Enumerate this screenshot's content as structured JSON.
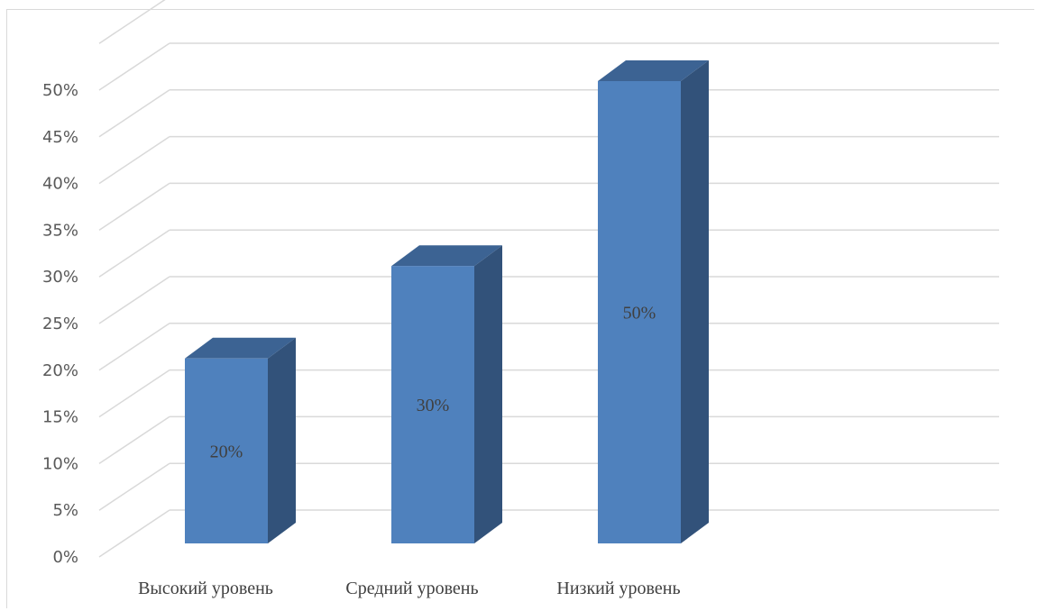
{
  "chart_data": {
    "type": "bar",
    "categories": [
      "Высокий уровень",
      "Средний уровень",
      "Низкий уровень"
    ],
    "values": [
      20,
      30,
      50
    ],
    "data_labels": [
      "20%",
      "30%",
      "50%"
    ],
    "ylim": [
      0,
      50
    ],
    "y_ticks": [
      "0%",
      "5%",
      "10%",
      "15%",
      "20%",
      "25%",
      "30%",
      "35%",
      "40%",
      "45%",
      "50%"
    ],
    "title": "",
    "xlabel": "",
    "ylabel": "",
    "grid": true,
    "style": "3d-column",
    "colors": {
      "bar_front": "#4f81bd",
      "bar_side": "#32527a",
      "bar_top": "#3c6393",
      "grid": "#d9d9d9"
    }
  }
}
